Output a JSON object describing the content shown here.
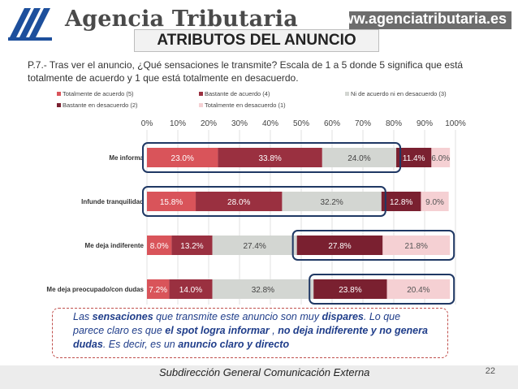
{
  "header": {
    "brand": "Agencia Tributaria",
    "url": "www.agenciatributaria.es"
  },
  "title": "ATRIBUTOS DEL ANUNCIO",
  "question": "P.7.- Tras ver el anuncio, ¿Qué sensaciones le transmite? Escala de 1 a 5 donde 5 significa que está totalmente de acuerdo y 1 que está totalmente en desacuerdo.",
  "chart_data": {
    "type": "bar",
    "orientation": "horizontal",
    "stacked": true,
    "xlim": [
      0,
      100
    ],
    "x_ticks": [
      "0%",
      "10%",
      "20%",
      "30%",
      "40%",
      "50%",
      "60%",
      "70%",
      "80%",
      "90%",
      "100%"
    ],
    "legend_position": "top",
    "categories": [
      "Me informa",
      "Infunde tranquilidad",
      "Me deja indiferente",
      "Me deja preocupado/con dudas"
    ],
    "series": [
      {
        "name": "Totalmente de acuerdo (5)",
        "color": "#d9545a",
        "values": [
          23.0,
          15.8,
          8.0,
          7.2
        ],
        "labels": [
          "23.0%",
          "15.8%",
          "8.0%",
          "7.2%"
        ]
      },
      {
        "name": "Bastante de acuerdo (4)",
        "color": "#9a3040",
        "values": [
          33.8,
          28.0,
          13.2,
          14.0
        ],
        "labels": [
          "33.8%",
          "28.0%",
          "13.2%",
          "14.0%"
        ]
      },
      {
        "name": "Ni de acuerdo ni en desacuerdo (3)",
        "color": "#d3d6d2",
        "values": [
          24.0,
          32.2,
          27.4,
          32.8
        ],
        "labels": [
          "24.0%",
          "32.2%",
          "27.4%",
          "32.8%"
        ]
      },
      {
        "name": "Bastante en desacuerdo (2)",
        "color": "#7a2030",
        "values": [
          11.4,
          12.8,
          27.8,
          23.8
        ],
        "labels": [
          "11.4%",
          "12.8%",
          "27.8%",
          "23.8%"
        ]
      },
      {
        "name": "Totalmente en desacuerdo (1)",
        "color": "#f5d0d3",
        "values": [
          6.0,
          9.0,
          21.8,
          20.4
        ],
        "labels": [
          "6.0%",
          "9.0%",
          "21.8%",
          "20.4%"
        ]
      }
    ],
    "highlights": [
      {
        "category": "Me informa",
        "from_series": 0,
        "to_series": 2
      },
      {
        "category": "Infunde tranquilidad",
        "from_series": 0,
        "to_series": 2
      },
      {
        "category": "Me deja indiferente",
        "from_series": 3,
        "to_series": 4
      },
      {
        "category": "Me deja preocupado/con dudas",
        "from_series": 3,
        "to_series": 4
      }
    ]
  },
  "conclusion": {
    "p1": "Las ",
    "b1": "sensaciones",
    "p2": " que transmite este anuncio son muy ",
    "b2": "dispares",
    "p3": ". Lo que parece claro es que ",
    "b3": "el spot logra informar",
    "p4": " , ",
    "b4": "no deja indiferente y no genera dudas",
    "p5": ". Es decir, es un ",
    "b5": "anuncio claro y directo"
  },
  "footer": {
    "text": "Subdirección General Comunicación Externa",
    "page": "22"
  }
}
